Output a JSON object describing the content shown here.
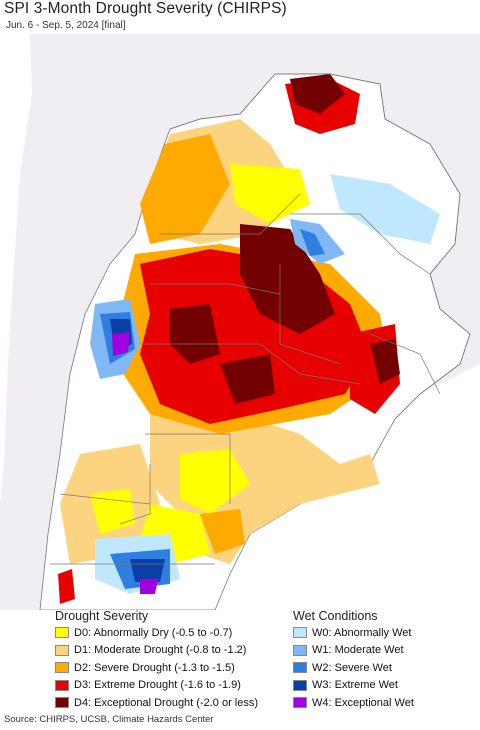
{
  "title": "SPI 3-Month Drought Severity (CHIRPS)",
  "subtitle": "Jun. 6 - Sep. 5, 2024 [final]",
  "legend": {
    "drought_title": "Drought Severity",
    "wet_title": "Wet Conditions",
    "drought": [
      {
        "label": "D0: Abnormally Dry (-0.5 to -0.7)",
        "color": "#ffff00"
      },
      {
        "label": "D1: Moderate Drought (-0.8 to -1.2)",
        "color": "#fcd37f"
      },
      {
        "label": "D2: Severe Drought (-1.3 to -1.5)",
        "color": "#ffaa00"
      },
      {
        "label": "D3: Extreme Drought (-1.6 to -1.9)",
        "color": "#e60000"
      },
      {
        "label": "D4: Exceptional Drought (-2.0 or less)",
        "color": "#730000"
      }
    ],
    "wet": [
      {
        "label": "W0: Abnormally Wet",
        "color": "#bfe8ff"
      },
      {
        "label": "W1: Moderate Wet",
        "color": "#7fb8f5"
      },
      {
        "label": "W2: Severe Wet",
        "color": "#2f7fe0"
      },
      {
        "label": "W3: Extreme Wet",
        "color": "#0a3fa8"
      },
      {
        "label": "W4: Exceptional Wet",
        "color": "#a000e0"
      }
    ]
  },
  "source": "Source: CHIRPS, UCSB, Climate Hazards Center",
  "map": {
    "ocean_color": "#ffffff",
    "outside_land_color": "#f0eef2",
    "border_color": "#777777"
  }
}
